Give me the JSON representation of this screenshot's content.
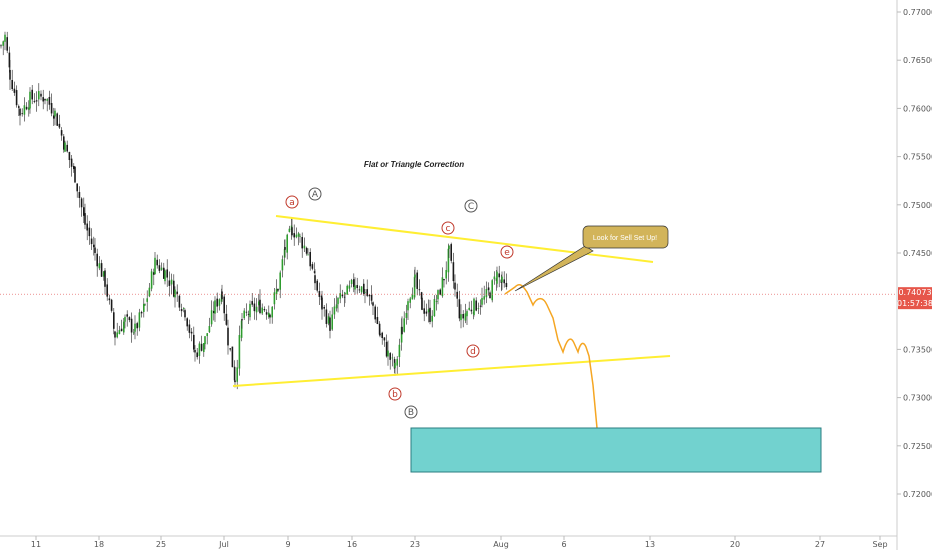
{
  "chart_data": {
    "type": "candlestick",
    "title": "Flat or Triangle Correction",
    "ylim": [
      0.7155,
      0.7715
    ],
    "y_ticks": [
      "0.77000",
      "0.76500",
      "0.76000",
      "0.75500",
      "0.75000",
      "0.74500",
      "0.74000",
      "0.73500",
      "0.73000",
      "0.72500",
      "0.72000"
    ],
    "x_ticks": [
      "11",
      "18",
      "25",
      "Jul",
      "9",
      "16",
      "23",
      "Aug",
      "6",
      "13",
      "20",
      "27",
      "Sep"
    ],
    "current_price": "0.74073",
    "countdown": "01:57:38",
    "wave_labels": [
      "a",
      "A",
      "b",
      "B",
      "c",
      "C",
      "d",
      "e"
    ],
    "callout": "Look for Sell Set Up!",
    "trendlines": [
      {
        "name": "upper",
        "from": [
          "Jul 7",
          0.7488
        ],
        "to": [
          "Aug 13",
          0.7405
        ]
      },
      {
        "name": "lower",
        "from": [
          "Jul 1",
          0.731
        ],
        "to": [
          "Aug 15",
          0.7342
        ]
      }
    ],
    "target_zone": {
      "x_range": [
        "Jul 30",
        "Aug 27"
      ],
      "y_range": [
        0.7222,
        0.7267
      ]
    },
    "colors": {
      "up": "#2e9c2e",
      "down": "#1a1a1a",
      "trendline": "#ffee33",
      "projection": "#f5a623",
      "zone_fill": "#72d2cf",
      "price_line": "#e05050",
      "price_tag": "#e6564a",
      "callout_fill": "#d2b45a",
      "wave_lower": "#c0392b",
      "wave_upper": "#555555"
    }
  }
}
